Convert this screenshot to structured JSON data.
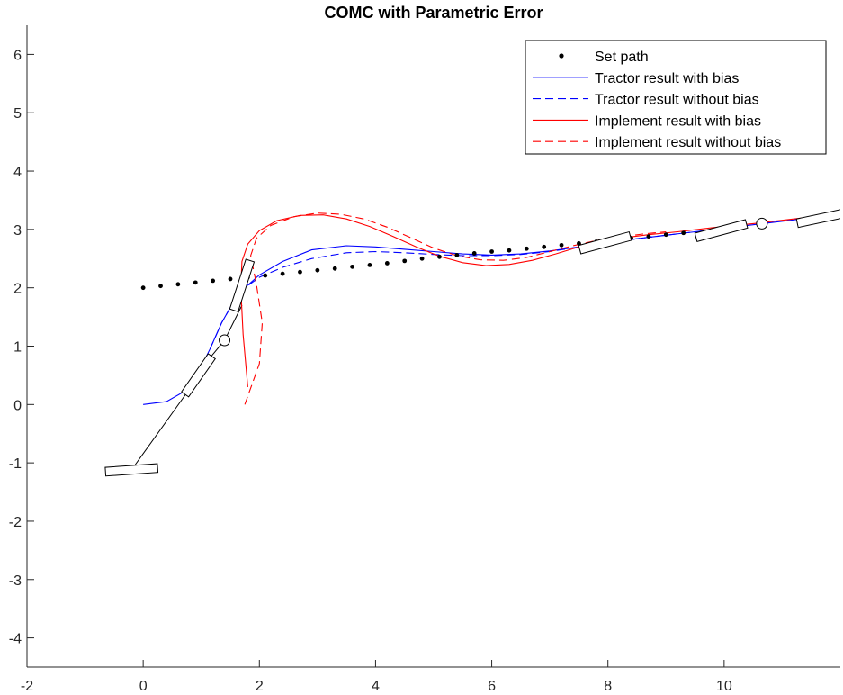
{
  "chart_data": {
    "type": "line",
    "title": "COMC with Parametric Error",
    "xlabel": "",
    "ylabel": "",
    "xlim": [
      -2,
      12
    ],
    "ylim": [
      -4.5,
      6.5
    ],
    "xticks": [
      -2,
      0,
      2,
      4,
      6,
      8,
      10
    ],
    "yticks": [
      -4,
      -3,
      -2,
      -1,
      0,
      1,
      2,
      3,
      4,
      5,
      6
    ],
    "grid": false,
    "legend_position": "top-right",
    "colors": {
      "tractor": "#0000ff",
      "implement": "#ff0000",
      "set_path": "#000000",
      "equipment": "#000000"
    },
    "series": [
      {
        "name": "Set path",
        "style": "dots",
        "x": [
          0,
          0.3,
          0.6,
          0.9,
          1.2,
          1.5,
          1.8,
          2.1,
          2.4,
          2.7,
          3.0,
          3.3,
          3.6,
          3.9,
          4.2,
          4.5,
          4.8,
          5.1,
          5.4,
          5.7,
          6.0,
          6.3,
          6.6,
          6.9,
          7.2,
          7.5,
          7.8,
          8.1,
          8.4,
          8.7,
          9.0,
          9.3
        ],
        "y": [
          2.0,
          2.03,
          2.06,
          2.09,
          2.12,
          2.15,
          2.18,
          2.21,
          2.24,
          2.27,
          2.3,
          2.33,
          2.36,
          2.39,
          2.42,
          2.46,
          2.5,
          2.53,
          2.56,
          2.59,
          2.62,
          2.64,
          2.67,
          2.7,
          2.73,
          2.76,
          2.79,
          2.82,
          2.85,
          2.88,
          2.91,
          2.94
        ]
      },
      {
        "name": "Tractor result with bias",
        "style": "solid",
        "color": "#0000ff",
        "x": [
          0,
          0.4,
          0.7,
          0.95,
          1.15,
          1.35,
          1.55,
          1.75,
          2.0,
          2.4,
          2.9,
          3.5,
          4.0,
          4.5,
          5.0,
          5.5,
          6.0,
          6.5,
          7.0,
          7.5,
          8.0,
          8.5,
          9.0,
          9.5,
          10.0,
          10.5,
          11.0,
          11.5,
          12.0
        ],
        "y": [
          0,
          0.05,
          0.22,
          0.55,
          0.95,
          1.4,
          1.75,
          2.0,
          2.22,
          2.45,
          2.65,
          2.72,
          2.7,
          2.66,
          2.62,
          2.58,
          2.56,
          2.58,
          2.63,
          2.7,
          2.77,
          2.84,
          2.9,
          2.96,
          3.02,
          3.08,
          3.14,
          3.2,
          3.25
        ]
      },
      {
        "name": "Tractor result without bias",
        "style": "dashed",
        "color": "#0000ff",
        "x": [
          1.15,
          1.35,
          1.55,
          1.75,
          2.0,
          2.4,
          2.9,
          3.5,
          4.0,
          4.5,
          5.0,
          5.5,
          6.0,
          6.5,
          7.0,
          7.5,
          8.0,
          8.5,
          9.0,
          9.5,
          10.0
        ],
        "y": [
          0.95,
          1.4,
          1.75,
          2.0,
          2.18,
          2.35,
          2.5,
          2.6,
          2.62,
          2.6,
          2.57,
          2.55,
          2.55,
          2.57,
          2.62,
          2.7,
          2.77,
          2.84,
          2.9,
          2.96,
          3.02
        ]
      },
      {
        "name": "Implement result with bias",
        "style": "solid",
        "color": "#ff0000",
        "x": [
          1.8,
          1.72,
          1.68,
          1.7,
          1.8,
          2.0,
          2.3,
          2.7,
          3.1,
          3.5,
          3.9,
          4.3,
          4.7,
          5.1,
          5.5,
          5.9,
          6.3,
          6.7,
          7.1,
          7.5,
          7.9,
          8.3,
          8.7,
          9.2,
          9.8,
          10.5,
          11.2,
          12.0
        ],
        "y": [
          0.3,
          1.2,
          2.0,
          2.45,
          2.75,
          2.98,
          3.15,
          3.24,
          3.25,
          3.18,
          3.05,
          2.88,
          2.7,
          2.54,
          2.43,
          2.38,
          2.4,
          2.47,
          2.58,
          2.7,
          2.8,
          2.86,
          2.91,
          2.96,
          3.03,
          3.1,
          3.18,
          3.27
        ]
      },
      {
        "name": "Implement result without bias",
        "style": "dashed",
        "color": "#ff0000",
        "x": [
          1.75,
          2.0,
          2.05,
          1.95,
          1.85,
          1.95,
          2.2,
          2.6,
          3.0,
          3.4,
          3.8,
          4.2,
          4.6,
          5.0,
          5.4,
          5.8,
          6.2,
          6.6,
          7.0,
          7.4,
          7.8,
          8.2,
          8.6,
          9.0
        ],
        "y": [
          0.0,
          0.7,
          1.4,
          2.05,
          2.55,
          2.85,
          3.07,
          3.22,
          3.28,
          3.26,
          3.18,
          3.04,
          2.86,
          2.68,
          2.55,
          2.48,
          2.47,
          2.52,
          2.62,
          2.72,
          2.81,
          2.87,
          2.92,
          2.96
        ]
      }
    ],
    "equipment": {
      "implements": [
        {
          "cx": -0.2,
          "cy": -1.12,
          "length": 0.9,
          "width": 0.2,
          "angle_deg": 4
        },
        {
          "cx": 1.7,
          "cy": 2.04,
          "length": 0.9,
          "width": 0.2,
          "angle_deg": 72
        },
        {
          "cx": 7.95,
          "cy": 2.77,
          "length": 0.9,
          "width": 0.2,
          "angle_deg": 15
        },
        {
          "cx": 9.95,
          "cy": 2.98,
          "length": 0.9,
          "width": 0.2,
          "angle_deg": 15
        },
        {
          "cx": 11.7,
          "cy": 3.2,
          "length": 0.9,
          "width": 0.2,
          "angle_deg": 12
        }
      ],
      "tractors": [
        {
          "cx": 0.95,
          "cy": 0.5,
          "length": 0.8,
          "width": 0.2,
          "angle_deg": 55
        }
      ],
      "hitch_points": [
        {
          "x": 1.4,
          "y": 1.1
        },
        {
          "x": 10.65,
          "y": 3.1
        }
      ],
      "links": [
        {
          "x1": -0.15,
          "y1": -1.05,
          "x2": 0.75,
          "y2": 0.2
        },
        {
          "x1": 1.15,
          "y1": 0.8,
          "x2": 1.4,
          "y2": 1.1
        },
        {
          "x1": 1.4,
          "y1": 1.1,
          "x2": 1.7,
          "y2": 1.7
        }
      ]
    }
  }
}
